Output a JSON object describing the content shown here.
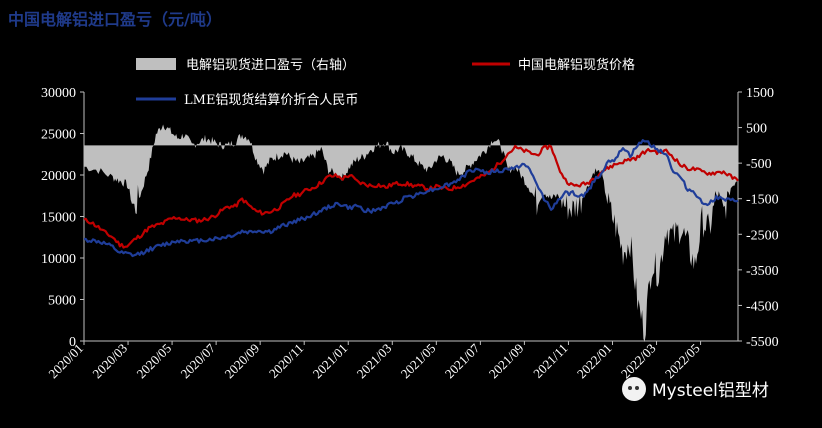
{
  "title": "中国电解铝进口盈亏（元/吨）",
  "watermark": {
    "text": "Mysteel铝型材",
    "icon": "wechat-icon"
  },
  "colors": {
    "background": "#000000",
    "bars": "#bfbfbf",
    "china_price": "#c00000",
    "lme_price": "#1f3d99",
    "title": "#1f3a8a"
  },
  "chart_data": {
    "type": "line",
    "title": "中国电解铝进口盈亏（元/吨）",
    "legend": [
      {
        "label": "电解铝现货进口盈亏（右轴）",
        "color": "#bfbfbf",
        "kind": "area"
      },
      {
        "label": "中国电解铝现货价格",
        "color": "#c00000",
        "kind": "line"
      },
      {
        "label": "LME铝现货结算价折合人民币",
        "color": "#1f3d99",
        "kind": "line"
      }
    ],
    "left_axis": {
      "min": 0,
      "max": 30000,
      "ticks": [
        "0",
        "5000",
        "10000",
        "15000",
        "20000",
        "25000",
        "30000"
      ]
    },
    "right_axis": {
      "min": -5500,
      "max": 1500,
      "ticks": [
        "-5500",
        "-4500",
        "-3500",
        "-2500",
        "-1500",
        "-500",
        "500",
        "1500"
      ]
    },
    "x_ticks": [
      "2020/01",
      "2020/03",
      "2020/05",
      "2020/07",
      "2020/09",
      "2020/11",
      "2021/01",
      "2021/03",
      "2021/05",
      "2021/07",
      "2021/09",
      "2021/11",
      "2022/01",
      "2022/03",
      "2022/05"
    ],
    "x_domain_months": [
      0,
      17.8
    ],
    "series": [
      {
        "name": "中国电解铝现货价格",
        "axis": "left",
        "color": "#c00000",
        "points": [
          [
            0,
            14600
          ],
          [
            0.5,
            14300
          ],
          [
            1,
            13700
          ],
          [
            1.5,
            13000
          ],
          [
            2,
            12500
          ],
          [
            2.5,
            11600
          ],
          [
            3,
            11400
          ],
          [
            3.5,
            12200
          ],
          [
            4,
            12800
          ],
          [
            4.5,
            13600
          ],
          [
            5,
            13900
          ],
          [
            5.5,
            14200
          ],
          [
            6,
            14700
          ],
          [
            6.5,
            14900
          ],
          [
            7,
            14600
          ],
          [
            7.5,
            14600
          ],
          [
            8,
            14500
          ],
          [
            8.5,
            14700
          ],
          [
            9,
            15000
          ],
          [
            9.5,
            15600
          ],
          [
            10,
            16200
          ],
          [
            10.5,
            16200
          ],
          [
            11,
            17100
          ],
          [
            11.5,
            16300
          ],
          [
            12,
            15600
          ],
          [
            12.5,
            15400
          ],
          [
            13,
            15600
          ],
          [
            13.5,
            16000
          ],
          [
            14,
            16700
          ],
          [
            14.5,
            17500
          ],
          [
            15,
            17700
          ],
          [
            15.5,
            18200
          ],
          [
            16,
            18500
          ],
          [
            16.5,
            19100
          ],
          [
            17,
            19800
          ],
          [
            17.5,
            19900
          ],
          [
            18,
            19600
          ],
          [
            18.5,
            20000
          ],
          [
            19,
            19200
          ],
          [
            19.5,
            18900
          ],
          [
            20,
            18700
          ],
          [
            20.5,
            18800
          ],
          [
            21,
            18500
          ],
          [
            21.5,
            18900
          ],
          [
            22,
            19000
          ],
          [
            22.5,
            18900
          ],
          [
            23,
            18700
          ],
          [
            23.5,
            18600
          ],
          [
            24,
            18300
          ],
          [
            24.5,
            18600
          ],
          [
            25,
            18400
          ],
          [
            25.5,
            18300
          ],
          [
            26,
            18600
          ],
          [
            26.5,
            18800
          ],
          [
            27,
            19300
          ],
          [
            27.5,
            19700
          ],
          [
            28,
            20100
          ],
          [
            28.5,
            20800
          ],
          [
            29,
            21600
          ],
          [
            29.5,
            22600
          ],
          [
            30,
            23300
          ],
          [
            30.5,
            23000
          ],
          [
            31,
            22700
          ],
          [
            31.5,
            22400
          ],
          [
            32,
            23200
          ],
          [
            32.5,
            23500
          ],
          [
            33,
            20900
          ],
          [
            33.5,
            19400
          ],
          [
            34,
            18700
          ],
          [
            34.5,
            18800
          ],
          [
            35,
            19000
          ],
          [
            35.5,
            19700
          ],
          [
            36,
            20400
          ],
          [
            36.5,
            20900
          ],
          [
            37,
            21300
          ],
          [
            37.5,
            21600
          ],
          [
            38,
            21900
          ],
          [
            38.5,
            22100
          ],
          [
            39,
            22800
          ],
          [
            39.5,
            23000
          ],
          [
            40,
            22700
          ],
          [
            40.5,
            22900
          ],
          [
            41,
            22200
          ],
          [
            41.5,
            21200
          ],
          [
            42,
            20800
          ],
          [
            42.5,
            20700
          ],
          [
            43,
            20400
          ],
          [
            43.5,
            20200
          ],
          [
            44,
            20300
          ],
          [
            44.5,
            20400
          ],
          [
            45,
            19800
          ],
          [
            45.5,
            19300
          ]
        ]
      },
      {
        "name": "LME铝现货结算价折合人民币",
        "axis": "left",
        "color": "#1f3d99",
        "points": [
          [
            0,
            12200
          ],
          [
            0.5,
            12100
          ],
          [
            1,
            12000
          ],
          [
            1.5,
            11700
          ],
          [
            2,
            11300
          ],
          [
            2.5,
            10600
          ],
          [
            3,
            10500
          ],
          [
            3.5,
            10300
          ],
          [
            4,
            10600
          ],
          [
            4.5,
            11000
          ],
          [
            5,
            11300
          ],
          [
            5.5,
            11600
          ],
          [
            6,
            11800
          ],
          [
            6.5,
            12100
          ],
          [
            7,
            12100
          ],
          [
            7.5,
            12000
          ],
          [
            8,
            12100
          ],
          [
            8.5,
            12200
          ],
          [
            9,
            12300
          ],
          [
            9.5,
            12400
          ],
          [
            10,
            12600
          ],
          [
            10.5,
            12800
          ],
          [
            11,
            13200
          ],
          [
            11.5,
            13100
          ],
          [
            12,
            13300
          ],
          [
            12.5,
            13200
          ],
          [
            13,
            13200
          ],
          [
            13.5,
            13600
          ],
          [
            14,
            14000
          ],
          [
            14.5,
            14300
          ],
          [
            15,
            14600
          ],
          [
            15.5,
            14900
          ],
          [
            16,
            15300
          ],
          [
            16.5,
            15700
          ],
          [
            17,
            16100
          ],
          [
            17.5,
            16500
          ],
          [
            18,
            16400
          ],
          [
            18.5,
            16000
          ],
          [
            19,
            16300
          ],
          [
            19.5,
            15800
          ],
          [
            20,
            15600
          ],
          [
            20.5,
            15900
          ],
          [
            21,
            16200
          ],
          [
            21.5,
            16600
          ],
          [
            22,
            16900
          ],
          [
            22.5,
            17500
          ],
          [
            23,
            17500
          ],
          [
            23.5,
            17900
          ],
          [
            24,
            18200
          ],
          [
            24.5,
            18300
          ],
          [
            25,
            18700
          ],
          [
            25.5,
            18900
          ],
          [
            26,
            19400
          ],
          [
            26.5,
            20000
          ],
          [
            27,
            20600
          ],
          [
            27.5,
            20700
          ],
          [
            28,
            20200
          ],
          [
            28.5,
            20500
          ],
          [
            29,
            20400
          ],
          [
            29.5,
            20800
          ],
          [
            30,
            20800
          ],
          [
            30.5,
            21400
          ],
          [
            31,
            20600
          ],
          [
            31.5,
            18900
          ],
          [
            32,
            17200
          ],
          [
            32.5,
            16000
          ],
          [
            33,
            16900
          ],
          [
            33.5,
            17800
          ],
          [
            34,
            17800
          ],
          [
            34.5,
            17400
          ],
          [
            35,
            17800
          ],
          [
            35.5,
            19400
          ],
          [
            36,
            20200
          ],
          [
            36.5,
            21800
          ],
          [
            37,
            21800
          ],
          [
            37.5,
            23400
          ],
          [
            38,
            22300
          ],
          [
            38.5,
            23500
          ],
          [
            39,
            24200
          ],
          [
            39.5,
            23600
          ],
          [
            40,
            23000
          ],
          [
            40.5,
            22600
          ],
          [
            41,
            20400
          ],
          [
            41.5,
            19700
          ],
          [
            42,
            18300
          ],
          [
            42.5,
            17900
          ],
          [
            43,
            16600
          ],
          [
            43.5,
            16600
          ],
          [
            44,
            17300
          ],
          [
            44.5,
            17000
          ],
          [
            45,
            16900
          ],
          [
            45.5,
            16900
          ]
        ]
      },
      {
        "name": "电解铝现货进口盈亏（右轴）",
        "axis": "right",
        "color": "#bfbfbf",
        "type": "area",
        "points": [
          [
            0,
            -600
          ],
          [
            1,
            -700
          ],
          [
            2,
            -900
          ],
          [
            2.5,
            -1000
          ],
          [
            3,
            -1100
          ],
          [
            3.5,
            -1800
          ],
          [
            4,
            -1300
          ],
          [
            4.5,
            -600
          ],
          [
            5,
            300
          ],
          [
            5.5,
            600
          ],
          [
            6,
            400
          ],
          [
            6.5,
            200
          ],
          [
            7,
            300
          ],
          [
            7.5,
            0
          ],
          [
            8,
            100
          ],
          [
            8.5,
            200
          ],
          [
            9,
            100
          ],
          [
            9.5,
            0
          ],
          [
            10,
            0
          ],
          [
            10.5,
            100
          ],
          [
            11,
            300
          ],
          [
            11.5,
            200
          ],
          [
            12,
            -400
          ],
          [
            12.5,
            -700
          ],
          [
            13,
            -400
          ],
          [
            13.5,
            -300
          ],
          [
            14,
            -200
          ],
          [
            14.5,
            -400
          ],
          [
            15,
            -500
          ],
          [
            15.5,
            -400
          ],
          [
            16,
            -300
          ],
          [
            16.5,
            -100
          ],
          [
            17,
            -700
          ],
          [
            17.5,
            -800
          ],
          [
            18,
            -900
          ],
          [
            18.5,
            -600
          ],
          [
            19,
            -400
          ],
          [
            19.5,
            -300
          ],
          [
            20,
            -100
          ],
          [
            20.5,
            0
          ],
          [
            21,
            100
          ],
          [
            21.5,
            -200
          ],
          [
            22,
            -100
          ],
          [
            22.5,
            -200
          ],
          [
            23,
            -400
          ],
          [
            23.5,
            -600
          ],
          [
            24,
            -700
          ],
          [
            24.5,
            -400
          ],
          [
            25,
            -300
          ],
          [
            25.5,
            -500
          ],
          [
            26,
            -800
          ],
          [
            26.5,
            -700
          ],
          [
            27,
            -500
          ],
          [
            27.5,
            -300
          ],
          [
            28,
            -100
          ],
          [
            28.5,
            200
          ],
          [
            29,
            0
          ],
          [
            29.5,
            -700
          ],
          [
            30,
            -600
          ],
          [
            30.5,
            -900
          ],
          [
            31,
            -1200
          ],
          [
            31.5,
            -1600
          ],
          [
            32,
            -1300
          ],
          [
            32.5,
            -1500
          ],
          [
            33,
            -1400
          ],
          [
            33.5,
            -1700
          ],
          [
            34,
            -1800
          ],
          [
            34.5,
            -1600
          ],
          [
            35,
            -1200
          ],
          [
            35.5,
            -700
          ],
          [
            36,
            -800
          ],
          [
            36.5,
            -1700
          ],
          [
            37,
            -2300
          ],
          [
            37.5,
            -3000
          ],
          [
            38,
            -2700
          ],
          [
            38.5,
            -4400
          ],
          [
            39,
            -5200
          ],
          [
            39.5,
            -3300
          ],
          [
            40,
            -3600
          ],
          [
            40.5,
            -2300
          ],
          [
            41,
            -2600
          ],
          [
            41.5,
            -2300
          ],
          [
            42,
            -2800
          ],
          [
            42.5,
            -3400
          ],
          [
            43,
            -2100
          ],
          [
            43.5,
            -2400
          ],
          [
            44,
            -1400
          ],
          [
            44.5,
            -1900
          ],
          [
            45,
            -1200
          ],
          [
            45.5,
            -900
          ]
        ]
      }
    ]
  }
}
